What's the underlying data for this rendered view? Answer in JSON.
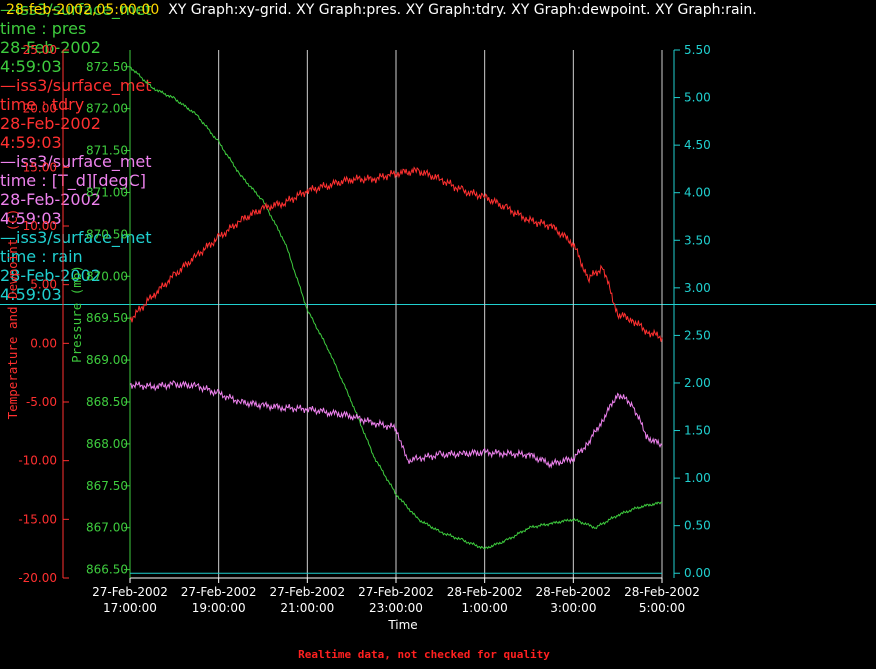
{
  "header": {
    "timestamp": "28-feb-2002,05:00:00",
    "graphs": "XY Graph:xy-grid.  XY Graph:pres.  XY Graph:tdry.  XY Graph:dewpoint.  XY Graph:rain."
  },
  "footer": {
    "note": "Realtime data, not checked for quality"
  },
  "colors": {
    "background": "#000000",
    "temperature": "#ff3030",
    "pressure": "#3ecc3e",
    "dewpoint": "#ee82ee",
    "rain": "#20d0d0",
    "grid": "#d0d0d0",
    "timestamp": "#ffd700"
  },
  "legend": [
    {
      "source": "—iss3/surface_met",
      "field": "time : pres",
      "date": "28-Feb-2002",
      "time": "4:59:03",
      "color": "#3ecc3e"
    },
    {
      "source": "—iss3/surface_met",
      "field": "time : tdry",
      "date": "28-Feb-2002",
      "time": "4:59:03",
      "color": "#ff3030"
    },
    {
      "source": "—iss3/surface_met",
      "field": "time : [T_d][degC]",
      "date": "28-Feb-2002",
      "time": "4:59:03",
      "color": "#ee82ee"
    },
    {
      "source": "—iss3/surface_met",
      "field": "time : rain",
      "date": "28-Feb-2002",
      "time": "4:59:03",
      "color": "#20d0d0"
    }
  ],
  "chart_data": {
    "type": "line",
    "xlabel": "Time",
    "xlim": [
      "2002-02-27T17:00:00",
      "2002-02-28T05:00:00"
    ],
    "x_ticks": [
      {
        "date": "27-Feb-2002",
        "time": "17:00:00"
      },
      {
        "date": "27-Feb-2002",
        "time": "19:00:00"
      },
      {
        "date": "27-Feb-2002",
        "time": "21:00:00"
      },
      {
        "date": "27-Feb-2002",
        "time": "23:00:00"
      },
      {
        "date": "28-Feb-2002",
        "time": "1:00:00"
      },
      {
        "date": "28-Feb-2002",
        "time": "3:00:00"
      },
      {
        "date": "28-Feb-2002",
        "time": "5:00:00"
      }
    ],
    "grid": "vertical lines at labeled time ticks",
    "axes": {
      "temperature": {
        "label": "Temperature and Dewpoint (C)",
        "range": [
          -20,
          25
        ],
        "ticks": [
          "25.00",
          "20.00",
          "15.00",
          "10.00",
          "5.00",
          "0.00",
          "-5.00",
          "-10.00",
          "-15.00",
          "-20.00"
        ]
      },
      "pressure": {
        "label": "Pressure (mb)",
        "range": [
          866.4,
          872.7
        ],
        "ticks": [
          "872.50",
          "872.00",
          "871.50",
          "871.00",
          "870.50",
          "870.00",
          "869.50",
          "869.00",
          "868.50",
          "868.00",
          "867.50",
          "867.00",
          "866.50"
        ]
      },
      "rain": {
        "range": [
          -0.05,
          5.5
        ],
        "ticks": [
          "5.50",
          "5.00",
          "4.50",
          "4.00",
          "3.50",
          "3.00",
          "2.50",
          "2.00",
          "1.50",
          "1.00",
          "0.50",
          "0.00"
        ]
      }
    },
    "series": [
      {
        "key": "pres",
        "axis": "pressure",
        "color": "#3ecc3e",
        "x": [
          "2002-02-27T17:00:00",
          "2002-02-27T17:30:00",
          "2002-02-27T18:00:00",
          "2002-02-27T18:30:00",
          "2002-02-27T19:00:00",
          "2002-02-27T19:30:00",
          "2002-02-27T20:00:00",
          "2002-02-27T20:30:00",
          "2002-02-27T21:00:00",
          "2002-02-27T21:30:00",
          "2002-02-27T22:00:00",
          "2002-02-27T22:30:00",
          "2002-02-27T23:00:00",
          "2002-02-27T23:30:00",
          "2002-02-28T00:00:00",
          "2002-02-28T00:30:00",
          "2002-02-28T01:00:00",
          "2002-02-28T01:30:00",
          "2002-02-28T02:00:00",
          "2002-02-28T02:30:00",
          "2002-02-28T03:00:00",
          "2002-02-28T03:30:00",
          "2002-02-28T04:00:00",
          "2002-02-28T04:30:00",
          "2002-02-28T05:00:00"
        ],
        "y": [
          872.5,
          872.25,
          872.12,
          871.93,
          871.6,
          871.2,
          870.9,
          870.4,
          869.6,
          869.1,
          868.5,
          867.85,
          867.4,
          867.1,
          866.95,
          866.85,
          866.75,
          866.85,
          867.0,
          867.05,
          867.1,
          867.0,
          867.15,
          867.25,
          867.3
        ]
      },
      {
        "key": "tdry",
        "axis": "temperature",
        "color": "#ff3030",
        "x": [
          "2002-02-27T17:00:00",
          "2002-02-27T17:30:00",
          "2002-02-27T18:00:00",
          "2002-02-27T18:30:00",
          "2002-02-27T19:00:00",
          "2002-02-27T19:30:00",
          "2002-02-27T20:00:00",
          "2002-02-27T20:30:00",
          "2002-02-27T21:00:00",
          "2002-02-27T21:30:00",
          "2002-02-27T22:00:00",
          "2002-02-27T22:30:00",
          "2002-02-27T23:00:00",
          "2002-02-27T23:30:00",
          "2002-02-28T00:00:00",
          "2002-02-28T00:30:00",
          "2002-02-28T01:00:00",
          "2002-02-28T01:30:00",
          "2002-02-28T02:00:00",
          "2002-02-28T02:30:00",
          "2002-02-28T03:00:00",
          "2002-02-28T03:20:00",
          "2002-02-28T03:40:00",
          "2002-02-28T04:00:00",
          "2002-02-28T04:20:00",
          "2002-02-28T04:40:00",
          "2002-02-28T05:00:00"
        ],
        "y": [
          2.0,
          4.0,
          5.8,
          7.5,
          9.0,
          10.5,
          11.5,
          12.0,
          13.0,
          13.5,
          14.0,
          14.0,
          14.5,
          14.7,
          14.0,
          13.0,
          12.5,
          11.5,
          10.5,
          10.0,
          8.5,
          5.5,
          6.5,
          2.5,
          2.0,
          1.0,
          0.5
        ]
      },
      {
        "key": "dewpoint",
        "axis": "temperature",
        "color": "#ee82ee",
        "x": [
          "2002-02-27T17:00:00",
          "2002-02-27T17:30:00",
          "2002-02-27T18:00:00",
          "2002-02-27T18:30:00",
          "2002-02-27T19:00:00",
          "2002-02-27T19:30:00",
          "2002-02-27T20:00:00",
          "2002-02-27T20:30:00",
          "2002-02-27T21:00:00",
          "2002-02-27T21:30:00",
          "2002-02-27T22:00:00",
          "2002-02-27T22:30:00",
          "2002-02-27T23:00:00",
          "2002-02-27T23:15:00",
          "2002-02-27T23:30:00",
          "2002-02-28T00:00:00",
          "2002-02-28T00:30:00",
          "2002-02-28T01:00:00",
          "2002-02-28T01:30:00",
          "2002-02-28T02:00:00",
          "2002-02-28T02:30:00",
          "2002-02-28T03:00:00",
          "2002-02-28T03:20:00",
          "2002-02-28T03:40:00",
          "2002-02-28T04:00:00",
          "2002-02-28T04:20:00",
          "2002-02-28T04:40:00",
          "2002-02-28T05:00:00"
        ],
        "y": [
          -3.5,
          -3.7,
          -3.5,
          -3.6,
          -4.3,
          -5.0,
          -5.3,
          -5.5,
          -5.6,
          -5.9,
          -6.2,
          -6.8,
          -7.2,
          -10.0,
          -9.8,
          -9.5,
          -9.4,
          -9.3,
          -9.4,
          -9.5,
          -10.3,
          -9.8,
          -8.5,
          -6.5,
          -4.3,
          -5.2,
          -8.0,
          -8.7
        ]
      },
      {
        "key": "rain",
        "axis": "rain",
        "color": "#20d0d0",
        "x": [
          "2002-02-27T17:00:00",
          "2002-02-28T05:00:00"
        ],
        "y": [
          0.0,
          0.0
        ]
      }
    ]
  }
}
